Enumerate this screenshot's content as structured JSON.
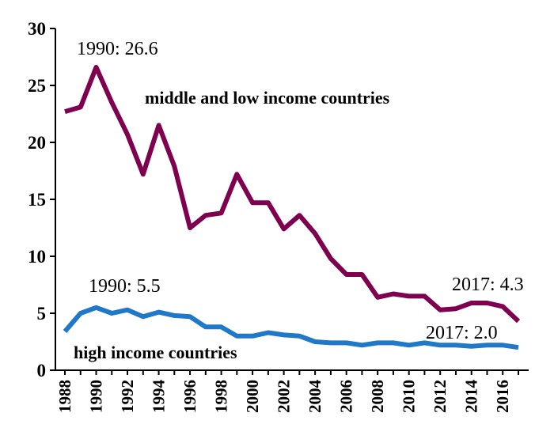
{
  "chart_data": {
    "type": "line",
    "title": "",
    "xlabel": "",
    "ylabel": "",
    "ylim": [
      0,
      30
    ],
    "yticks": [
      0,
      5,
      10,
      15,
      20,
      25,
      30
    ],
    "xlim": [
      1988,
      2017
    ],
    "xticks": [
      1988,
      1990,
      1992,
      1994,
      1996,
      1998,
      2000,
      2002,
      2004,
      2006,
      2008,
      2010,
      2012,
      2014,
      2016
    ],
    "grid": false,
    "x": [
      1988,
      1989,
      1990,
      1991,
      1992,
      1993,
      1994,
      1995,
      1996,
      1997,
      1998,
      1999,
      2000,
      2001,
      2002,
      2003,
      2004,
      2005,
      2006,
      2007,
      2008,
      2009,
      2010,
      2011,
      2012,
      2013,
      2014,
      2015,
      2016,
      2017
    ],
    "series": [
      {
        "name": "middle and low income countries",
        "color": "#800050",
        "values": [
          22.7,
          23.1,
          26.6,
          23.5,
          20.7,
          17.2,
          21.5,
          17.9,
          12.5,
          13.6,
          13.8,
          17.2,
          14.7,
          14.7,
          12.4,
          13.6,
          12.0,
          9.8,
          8.4,
          8.4,
          6.4,
          6.7,
          6.5,
          6.5,
          5.3,
          5.4,
          5.9,
          5.9,
          5.6,
          4.3
        ]
      },
      {
        "name": "high income countries",
        "color": "#1f78c8",
        "values": [
          3.4,
          5.0,
          5.5,
          5.0,
          5.3,
          4.7,
          5.1,
          4.8,
          4.7,
          3.8,
          3.8,
          3.0,
          3.0,
          3.3,
          3.1,
          3.0,
          2.5,
          2.4,
          2.4,
          2.2,
          2.4,
          2.4,
          2.2,
          2.4,
          2.2,
          2.2,
          2.1,
          2.2,
          2.2,
          2.0
        ]
      }
    ],
    "annotations": [
      {
        "text": "1990: 26.6"
      },
      {
        "text": "1990: 5.5"
      },
      {
        "text": "2017: 4.3"
      },
      {
        "text": "2017: 2.0"
      }
    ]
  }
}
